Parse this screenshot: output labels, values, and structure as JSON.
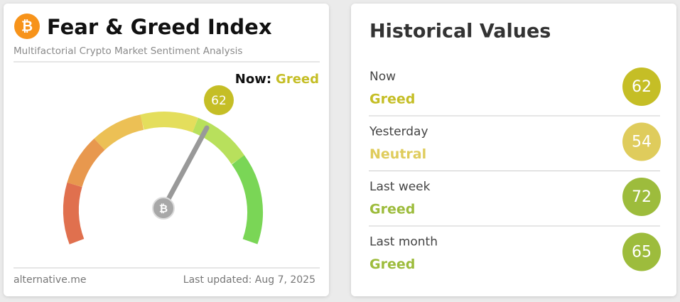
{
  "left": {
    "title": "Fear & Greed Index",
    "subtitle": "Multifactorial Crypto Market Sentiment Analysis",
    "now_label": "Now:",
    "now_class": "Greed",
    "now_color": "#c5be26",
    "value": "62",
    "footer_left": "alternative.me",
    "footer_right": "Last updated: Aug 7, 2025"
  },
  "right": {
    "title": "Historical Values",
    "rows": [
      {
        "period": "Now",
        "class": "Greed",
        "value": "62",
        "color": "#c5be26"
      },
      {
        "period": "Yesterday",
        "class": "Neutral",
        "value": "54",
        "color": "#dfcc5c"
      },
      {
        "period": "Last week",
        "class": "Greed",
        "value": "72",
        "color": "#9dbc3c"
      },
      {
        "period": "Last month",
        "class": "Greed",
        "value": "65",
        "color": "#9dbc3c"
      }
    ]
  }
}
